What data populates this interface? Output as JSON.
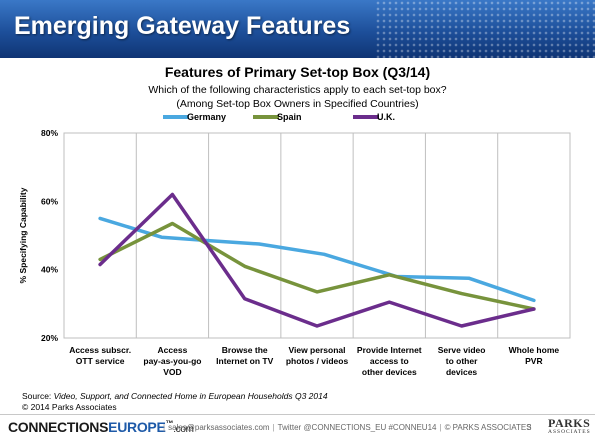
{
  "header": {
    "title": "Emerging Gateway Features"
  },
  "chart_data": {
    "type": "line",
    "title": "Features of Primary Set-top Box (Q3/14)",
    "subtitle": [
      "Which of the following characteristics apply to each set-top box?",
      "(Among Set-top Box Owners in Specified Countries)"
    ],
    "ylabel": "% Specifying Capability",
    "xlabel": "",
    "ylim": [
      20,
      80
    ],
    "yticks": [
      "20%",
      "40%",
      "60%",
      "80%"
    ],
    "yticks_values": [
      20,
      40,
      60,
      80
    ],
    "categories": [
      [
        "Access subscr.",
        "OTT service"
      ],
      [
        "Access",
        "pay-as-you-go",
        "VOD"
      ],
      [
        "Browse the",
        "Internet on TV"
      ],
      [
        "View personal",
        "photos / videos"
      ],
      [
        "Provide Internet",
        "access to",
        "other devices"
      ],
      [
        "Serve video",
        "to other",
        "devices"
      ],
      [
        "Whole home",
        "PVR"
      ]
    ],
    "series": [
      {
        "name": "Germany",
        "color": "#4aa8e0",
        "points": [
          [
            0,
            55
          ],
          [
            0.85,
            49.5
          ],
          [
            1.5,
            48.5
          ],
          [
            2.2,
            47.5
          ],
          [
            3.1,
            44.5
          ],
          [
            4.1,
            38
          ],
          [
            5.1,
            37.5
          ],
          [
            6.0,
            31
          ]
        ]
      },
      {
        "name": "Spain",
        "color": "#77933c",
        "points": [
          [
            0,
            43
          ],
          [
            1.0,
            53.5
          ],
          [
            2.0,
            41
          ],
          [
            3.0,
            33.5
          ],
          [
            4.0,
            38.5
          ],
          [
            5.0,
            33
          ],
          [
            6.0,
            28.5
          ]
        ]
      },
      {
        "name": "U.K.",
        "color": "#6b2d8c",
        "points": [
          [
            0,
            41.5
          ],
          [
            1.0,
            62
          ],
          [
            2.0,
            31.5
          ],
          [
            3.0,
            23.5
          ],
          [
            4.0,
            30.5
          ],
          [
            5.0,
            23.5
          ],
          [
            6.0,
            28.5
          ]
        ]
      }
    ],
    "legend": "top",
    "grid": "vertical"
  },
  "source": {
    "prefix": "Source: ",
    "italic": "Video, Support, and Connected Home in European Households Q3 2014",
    "copyright": "© 2014 Parks Associates"
  },
  "footer": {
    "brand_a": "CONNECTIONS",
    "brand_b": "EUROPE",
    "brand_c": ".com",
    "tm": "™",
    "email": "sales@parksassociates.com",
    "twitter": "Twitter @CONNECTIONS_EU",
    "hashtag": "#CONNEU14",
    "company": "© PARKS ASSOCIATES",
    "page": "3",
    "logo_top": "PARKS",
    "logo_bottom": "ASSOCIATES"
  }
}
